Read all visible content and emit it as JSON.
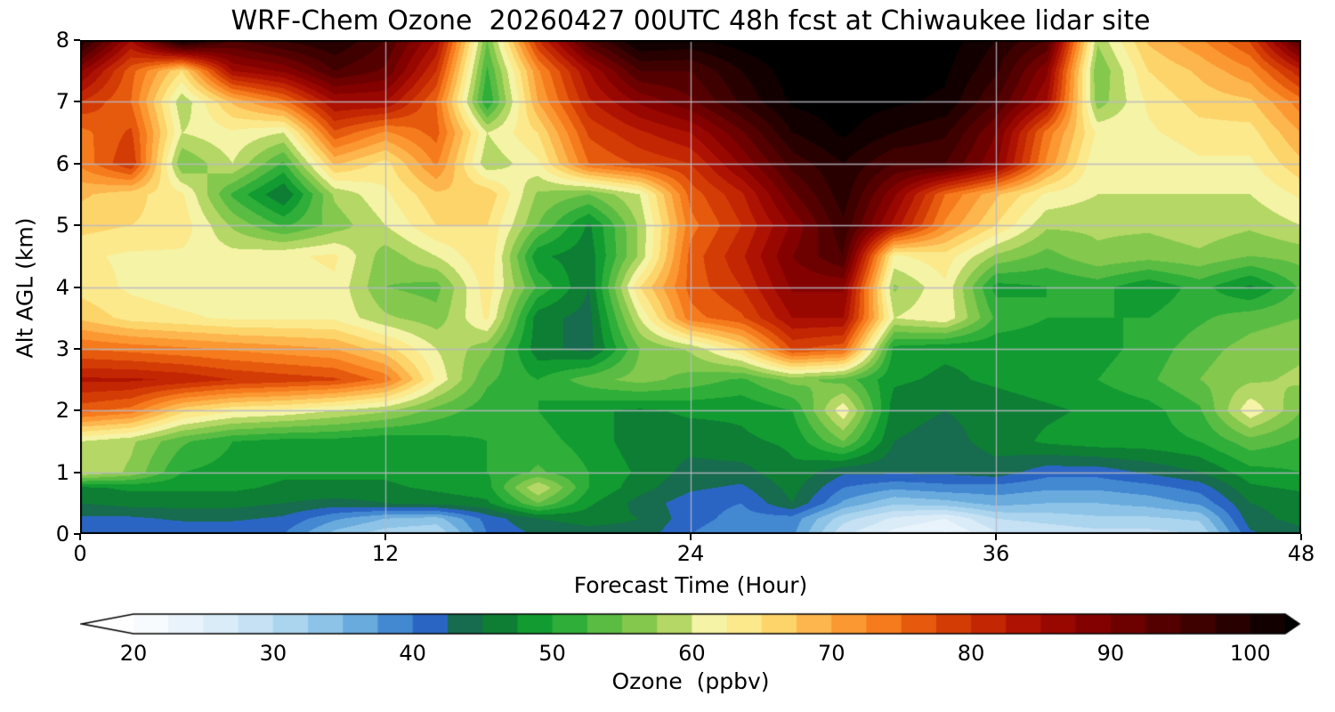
{
  "title": "WRF-Chem Ozone  20260427 00UTC 48h fcst at Chiwaukee lidar site",
  "axes": {
    "xlabel": "Forecast Time (Hour)",
    "ylabel": "Alt AGL (km)",
    "x_ticks": [
      0,
      12,
      24,
      36,
      48
    ],
    "y_ticks": [
      0,
      1,
      2,
      3,
      4,
      5,
      6,
      7,
      8
    ],
    "xlim": [
      0,
      48
    ],
    "ylim": [
      0,
      8
    ],
    "grid_x": [
      12,
      24,
      36
    ],
    "grid_y": [
      1,
      2,
      3,
      4,
      5,
      6,
      7
    ],
    "grid_color": "#b8b8c4"
  },
  "colorbar": {
    "label": "Ozone  (ppbv)",
    "tick_values": [
      20,
      30,
      40,
      50,
      60,
      70,
      80,
      90,
      100
    ],
    "level_min": 20,
    "level_max": 102.5,
    "level_step": 2.5,
    "extend": "both",
    "under_color": "#ffffff",
    "over_color": "#000000",
    "colors": [
      "#f7fbfe",
      "#e9f3fb",
      "#daecf8",
      "#c6e1f4",
      "#abd4ee",
      "#8dc3e7",
      "#69abdd",
      "#4389d2",
      "#2a65c4",
      "#176b4e",
      "#0d7e34",
      "#129b30",
      "#2fae39",
      "#5bbc44",
      "#84c84e",
      "#b5d765",
      "#f5f3a6",
      "#fbe98c",
      "#fdd46a",
      "#fdb54d",
      "#fb9832",
      "#f57b1d",
      "#e65a0e",
      "#d43c06",
      "#c32603",
      "#ae1202",
      "#980700",
      "#830200",
      "#6c0100",
      "#550000",
      "#3f0000",
      "#290000",
      "#120000"
    ]
  },
  "chart_data": {
    "type": "heatmap",
    "title": "WRF-Chem Ozone  20260427 00UTC 48h fcst at Chiwaukee lidar site",
    "xlabel": "Forecast Time (Hour)",
    "ylabel": "Alt AGL (km)",
    "units": "ppbv",
    "x_hours": [
      0,
      2,
      4,
      6,
      8,
      10,
      12,
      14,
      16,
      18,
      20,
      22,
      24,
      26,
      28,
      30,
      32,
      34,
      36,
      38,
      40,
      42,
      44,
      46,
      48
    ],
    "y_km": [
      0,
      0.25,
      0.5,
      0.75,
      1,
      1.5,
      2,
      2.5,
      3,
      3.5,
      4,
      4.5,
      5,
      5.5,
      6,
      6.5,
      7,
      7.5,
      8
    ],
    "values_ppbv": [
      [
        40,
        40,
        40,
        40,
        40,
        34,
        31,
        30,
        40,
        43,
        44,
        44,
        40,
        38,
        38,
        28,
        24,
        22,
        27,
        28,
        29,
        29,
        30,
        42,
        44
      ],
      [
        42,
        42,
        43,
        43,
        42,
        38,
        35,
        34,
        41,
        45,
        46,
        45,
        41,
        39,
        39,
        31,
        27,
        25,
        30,
        31,
        32,
        32,
        33,
        44,
        46
      ],
      [
        45,
        46,
        46,
        46,
        45,
        44,
        45,
        46,
        47,
        55,
        48,
        44,
        41,
        40,
        45,
        37,
        33,
        34,
        36,
        35,
        35,
        36,
        38,
        45,
        46
      ],
      [
        47,
        48,
        48,
        48,
        47,
        47,
        47,
        48,
        49,
        60,
        50,
        46,
        43,
        42,
        46,
        40,
        38,
        39,
        39,
        38,
        38,
        39,
        41,
        47,
        48
      ],
      [
        60,
        57,
        50,
        49,
        48,
        48,
        48,
        49,
        50,
        53,
        50,
        47,
        44,
        44,
        47,
        43,
        43,
        43,
        44,
        41,
        41,
        43,
        45,
        49,
        50
      ],
      [
        60,
        58,
        53,
        50,
        49,
        49,
        48,
        49,
        50,
        51,
        49,
        46,
        46,
        47,
        48,
        55,
        45,
        44,
        46,
        48,
        49,
        49,
        50,
        54,
        52
      ],
      [
        76,
        74,
        66,
        63,
        62,
        60,
        58,
        54,
        51,
        50,
        48,
        47,
        48,
        48,
        50,
        62,
        46,
        45,
        46,
        47,
        48,
        49,
        52,
        62,
        55
      ],
      [
        83,
        83,
        82,
        80,
        79,
        78,
        74,
        62,
        53,
        50,
        54,
        56,
        54,
        52,
        56,
        54,
        48,
        47,
        48,
        49,
        50,
        52,
        55,
        57,
        58
      ],
      [
        75,
        74,
        73,
        72,
        71,
        70,
        66,
        60,
        56,
        46,
        44,
        55,
        58,
        65,
        78,
        76,
        49,
        48,
        48,
        48,
        49,
        51,
        54,
        56,
        57
      ],
      [
        67,
        64,
        63,
        62,
        62,
        62,
        58,
        56,
        63,
        46,
        44,
        60,
        74,
        77,
        85,
        85,
        60,
        62,
        52,
        50,
        50,
        50,
        52,
        54,
        55
      ],
      [
        64,
        62,
        61,
        61,
        61,
        62,
        55,
        54,
        64,
        52,
        45,
        65,
        76,
        80,
        88,
        88,
        57,
        62,
        49,
        50,
        51,
        48,
        51,
        47,
        53
      ],
      [
        63,
        62,
        62,
        61,
        62,
        63,
        56,
        60,
        65,
        48,
        46,
        58,
        76,
        82,
        90,
        95,
        62,
        64,
        57,
        54,
        57,
        56,
        57,
        55,
        56
      ],
      [
        66,
        65,
        64,
        57,
        52,
        56,
        60,
        65,
        65,
        55,
        47,
        58,
        74,
        80,
        88,
        97,
        84,
        72,
        65,
        58,
        58,
        58,
        59,
        58,
        60
      ],
      [
        68,
        66,
        63,
        52,
        45,
        58,
        62,
        67,
        67,
        57,
        55,
        60,
        76,
        82,
        92,
        99,
        88,
        75,
        68,
        62,
        60,
        60,
        60,
        60,
        63
      ],
      [
        73,
        80,
        55,
        60,
        52,
        68,
        64,
        73,
        58,
        62,
        75,
        78,
        80,
        88,
        96,
        100,
        95,
        95,
        88,
        72,
        60,
        60,
        62,
        62,
        67
      ],
      [
        74,
        78,
        60,
        62,
        60,
        77,
        72,
        76,
        60,
        65,
        78,
        82,
        85,
        92,
        100,
        103,
        100,
        98,
        90,
        74,
        62,
        62,
        64,
        64,
        70
      ],
      [
        80,
        75,
        58,
        68,
        74,
        85,
        85,
        75,
        50,
        70,
        82,
        88,
        92,
        98,
        103,
        104,
        103,
        102,
        95,
        85,
        56,
        63,
        66,
        67,
        74
      ],
      [
        88,
        76,
        65,
        85,
        88,
        95,
        92,
        80,
        52,
        72,
        85,
        95,
        95,
        100,
        104,
        105,
        104,
        103,
        98,
        88,
        55,
        65,
        68,
        72,
        82
      ],
      [
        100,
        85,
        103,
        95,
        98,
        100,
        95,
        85,
        55,
        80,
        95,
        103,
        102,
        104,
        105,
        105,
        105,
        104,
        100,
        95,
        58,
        68,
        72,
        78,
        95
      ]
    ]
  }
}
